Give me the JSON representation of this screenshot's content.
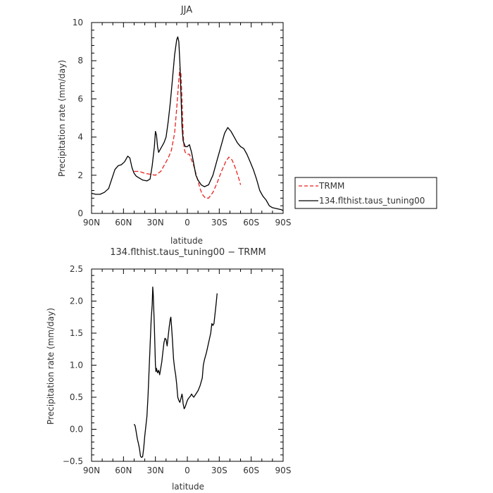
{
  "chart_data": [
    {
      "type": "line",
      "title": "JJA",
      "xlabel": "latitude",
      "ylabel": "Precipitation rate (mm/day)",
      "xlim": [
        90,
        -90
      ],
      "ylim": [
        0,
        10
      ],
      "x_ticks": [
        {
          "value": 90,
          "label": "90N"
        },
        {
          "value": 60,
          "label": "60N"
        },
        {
          "value": 30,
          "label": "30N"
        },
        {
          "value": 0,
          "label": "0"
        },
        {
          "value": -30,
          "label": "30S"
        },
        {
          "value": -60,
          "label": "60S"
        },
        {
          "value": -90,
          "label": "90S"
        }
      ],
      "y_ticks": [
        {
          "value": 0,
          "label": "0"
        },
        {
          "value": 2,
          "label": "2"
        },
        {
          "value": 4,
          "label": "4"
        },
        {
          "value": 6,
          "label": "6"
        },
        {
          "value": 8,
          "label": "8"
        },
        {
          "value": 10,
          "label": "10"
        }
      ],
      "legend": "right, outside plot",
      "series": [
        {
          "name": "TRMM",
          "color": "#e8231f",
          "style": "dashed",
          "points": [
            [
              50,
              2.2
            ],
            [
              45,
              2.2
            ],
            [
              40,
              2.1
            ],
            [
              35,
              2.05
            ],
            [
              30,
              2.0
            ],
            [
              25,
              2.2
            ],
            [
              22,
              2.5
            ],
            [
              18,
              2.9
            ],
            [
              15,
              3.3
            ],
            [
              12,
              4.2
            ],
            [
              10,
              5.5
            ],
            [
              8,
              7.0
            ],
            [
              7,
              7.6
            ],
            [
              6,
              7.3
            ],
            [
              5,
              6.0
            ],
            [
              4,
              4.2
            ],
            [
              3,
              3.4
            ],
            [
              2,
              3.2
            ],
            [
              0,
              3.1
            ],
            [
              -2,
              3.1
            ],
            [
              -4,
              2.8
            ],
            [
              -6,
              2.5
            ],
            [
              -8,
              2.1
            ],
            [
              -10,
              1.7
            ],
            [
              -12,
              1.3
            ],
            [
              -14,
              1.0
            ],
            [
              -17,
              0.8
            ],
            [
              -20,
              0.8
            ],
            [
              -24,
              1.1
            ],
            [
              -28,
              1.6
            ],
            [
              -32,
              2.2
            ],
            [
              -36,
              2.7
            ],
            [
              -39,
              2.95
            ],
            [
              -42,
              2.8
            ],
            [
              -45,
              2.4
            ],
            [
              -48,
              1.9
            ],
            [
              -50,
              1.5
            ]
          ]
        },
        {
          "name": "134.flthist.taus_tuning00",
          "color": "#000000",
          "style": "solid",
          "points": [
            [
              90,
              1.05
            ],
            [
              86,
              1.0
            ],
            [
              82,
              1.0
            ],
            [
              78,
              1.1
            ],
            [
              74,
              1.3
            ],
            [
              71,
              1.8
            ],
            [
              68,
              2.3
            ],
            [
              65,
              2.5
            ],
            [
              62,
              2.55
            ],
            [
              59,
              2.7
            ],
            [
              56,
              3.0
            ],
            [
              54,
              2.9
            ],
            [
              52,
              2.4
            ],
            [
              50,
              2.1
            ],
            [
              48,
              1.95
            ],
            [
              45,
              1.85
            ],
            [
              42,
              1.75
            ],
            [
              38,
              1.7
            ],
            [
              35,
              1.8
            ],
            [
              33,
              2.5
            ],
            [
              31,
              3.5
            ],
            [
              30,
              4.3
            ],
            [
              29,
              4.1
            ],
            [
              28,
              3.5
            ],
            [
              27,
              3.2
            ],
            [
              25,
              3.4
            ],
            [
              22,
              3.7
            ],
            [
              20,
              4.0
            ],
            [
              18,
              4.8
            ],
            [
              16,
              5.8
            ],
            [
              14,
              7.0
            ],
            [
              12,
              8.3
            ],
            [
              10,
              9.1
            ],
            [
              9,
              9.25
            ],
            [
              8,
              9.0
            ],
            [
              7,
              7.9
            ],
            [
              6,
              6.3
            ],
            [
              5,
              4.6
            ],
            [
              4,
              3.8
            ],
            [
              2,
              3.5
            ],
            [
              0,
              3.5
            ],
            [
              -2,
              3.6
            ],
            [
              -4,
              3.2
            ],
            [
              -6,
              2.6
            ],
            [
              -8,
              2.0
            ],
            [
              -10,
              1.75
            ],
            [
              -13,
              1.5
            ],
            [
              -16,
              1.4
            ],
            [
              -20,
              1.5
            ],
            [
              -24,
              2.0
            ],
            [
              -28,
              2.8
            ],
            [
              -32,
              3.6
            ],
            [
              -35,
              4.2
            ],
            [
              -38,
              4.5
            ],
            [
              -41,
              4.3
            ],
            [
              -44,
              4.0
            ],
            [
              -47,
              3.7
            ],
            [
              -50,
              3.5
            ],
            [
              -53,
              3.4
            ],
            [
              -56,
              3.1
            ],
            [
              -59,
              2.7
            ],
            [
              -62,
              2.3
            ],
            [
              -65,
              1.8
            ],
            [
              -68,
              1.2
            ],
            [
              -71,
              0.9
            ],
            [
              -74,
              0.7
            ],
            [
              -77,
              0.4
            ],
            [
              -80,
              0.3
            ],
            [
              -84,
              0.25
            ],
            [
              -88,
              0.2
            ],
            [
              -90,
              0.15
            ]
          ]
        }
      ]
    },
    {
      "type": "line",
      "title": "134.flthist.taus_tuning00 − TRMM",
      "xlabel": "latitude",
      "ylabel": "Precipitation rate (mm/day)",
      "xlim": [
        90,
        -90
      ],
      "ylim": [
        -0.5,
        2.5
      ],
      "x_ticks": [
        {
          "value": 90,
          "label": "90N"
        },
        {
          "value": 60,
          "label": "60N"
        },
        {
          "value": 30,
          "label": "30N"
        },
        {
          "value": 0,
          "label": "0"
        },
        {
          "value": -30,
          "label": "30S"
        },
        {
          "value": -60,
          "label": "60S"
        },
        {
          "value": -90,
          "label": "90S"
        }
      ],
      "y_ticks": [
        {
          "value": -0.5,
          "label": "−0.5"
        },
        {
          "value": 0,
          "label": "0.0"
        },
        {
          "value": 0.5,
          "label": "0.5"
        },
        {
          "value": 1.0,
          "label": "1.0"
        },
        {
          "value": 1.5,
          "label": "1.5"
        },
        {
          "value": 2.0,
          "label": "2.0"
        },
        {
          "value": 2.5,
          "label": "2.5"
        }
      ],
      "series": [
        {
          "color": "#000000",
          "style": "solid",
          "points": [
            [
              50,
              0.08
            ],
            [
              49,
              0.05
            ],
            [
              48,
              -0.05
            ],
            [
              47,
              -0.15
            ],
            [
              46,
              -0.22
            ],
            [
              45,
              -0.3
            ],
            [
              44,
              -0.42
            ],
            [
              43,
              -0.44
            ],
            [
              42,
              -0.43
            ],
            [
              41,
              -0.3
            ],
            [
              40,
              -0.1
            ],
            [
              39,
              0.05
            ],
            [
              38,
              0.2
            ],
            [
              37,
              0.5
            ],
            [
              36,
              0.9
            ],
            [
              35,
              1.3
            ],
            [
              34,
              1.7
            ],
            [
              33,
              1.95
            ],
            [
              32.5,
              2.22
            ],
            [
              32,
              2.1
            ],
            [
              31,
              1.6
            ],
            [
              30,
              1.0
            ],
            [
              29.5,
              0.9
            ],
            [
              29,
              0.95
            ],
            [
              28,
              0.88
            ],
            [
              27,
              0.92
            ],
            [
              26,
              0.85
            ],
            [
              25,
              0.95
            ],
            [
              24,
              1.05
            ],
            [
              23,
              1.2
            ],
            [
              22,
              1.35
            ],
            [
              21,
              1.42
            ],
            [
              20,
              1.4
            ],
            [
              19,
              1.3
            ],
            [
              18,
              1.45
            ],
            [
              17,
              1.6
            ],
            [
              16,
              1.72
            ],
            [
              15.5,
              1.75
            ],
            [
              15,
              1.65
            ],
            [
              14,
              1.4
            ],
            [
              13,
              1.1
            ],
            [
              12,
              0.95
            ],
            [
              11,
              0.85
            ],
            [
              10,
              0.7
            ],
            [
              9,
              0.5
            ],
            [
              8,
              0.45
            ],
            [
              7,
              0.42
            ],
            [
              6,
              0.48
            ],
            [
              5,
              0.55
            ],
            [
              4.5,
              0.5
            ],
            [
              4,
              0.4
            ],
            [
              3,
              0.32
            ],
            [
              2,
              0.35
            ],
            [
              1,
              0.4
            ],
            [
              0,
              0.45
            ],
            [
              -1,
              0.48
            ],
            [
              -2,
              0.5
            ],
            [
              -3,
              0.52
            ],
            [
              -4,
              0.55
            ],
            [
              -5,
              0.52
            ],
            [
              -6,
              0.5
            ],
            [
              -8,
              0.55
            ],
            [
              -10,
              0.6
            ],
            [
              -12,
              0.68
            ],
            [
              -14,
              0.8
            ],
            [
              -15,
              1.0
            ],
            [
              -16,
              1.08
            ],
            [
              -18,
              1.2
            ],
            [
              -20,
              1.35
            ],
            [
              -22,
              1.5
            ],
            [
              -23,
              1.65
            ],
            [
              -24,
              1.62
            ],
            [
              -25,
              1.65
            ],
            [
              -26,
              1.8
            ],
            [
              -27,
              1.95
            ],
            [
              -28,
              2.12
            ]
          ]
        }
      ]
    }
  ]
}
